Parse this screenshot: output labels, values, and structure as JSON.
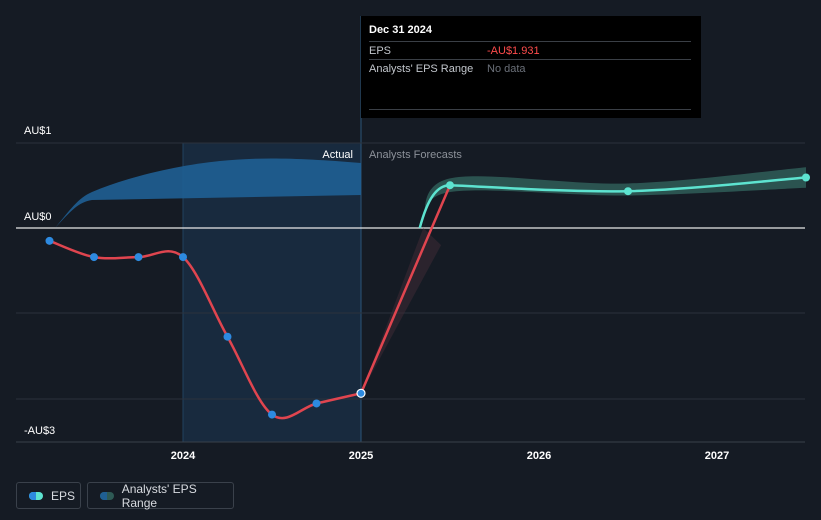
{
  "tooltip": {
    "date": "Dec 31 2024",
    "rows": [
      {
        "label": "EPS",
        "value": "-AU$1.931"
      },
      {
        "label": "Analysts' EPS Range",
        "value": "No data"
      }
    ]
  },
  "legend": {
    "eps_label": "EPS",
    "range_label": "Analysts' EPS Range"
  },
  "colors": {
    "background": "#151b24",
    "actual_line": "#e0454f",
    "forecast_line": "#5de3d0",
    "forecast_band": "#2e5a55",
    "actual_area": "#1f5f93",
    "point": "#2d8ae0"
  },
  "chart_data": {
    "type": "line",
    "title": "",
    "xlabel": "",
    "ylabel": "",
    "y_ticks": [
      {
        "value": 1,
        "label": "AU$1"
      },
      {
        "value": 0,
        "label": "AU$0"
      },
      {
        "value": -2.5,
        "label": "-AU$3"
      }
    ],
    "x_ticks": [
      "2024",
      "2025",
      "2026",
      "2027"
    ],
    "x_range": [
      2023.08,
      2027.5
    ],
    "y_range": [
      -2.5,
      1
    ],
    "grid": true,
    "divider_labels": {
      "actual": "Actual",
      "forecast": "Analysts Forecasts"
    },
    "series": [
      {
        "name": "EPS",
        "kind": "actual",
        "points": [
          {
            "x": 2023.25,
            "y": -0.15
          },
          {
            "x": 2023.5,
            "y": -0.34
          },
          {
            "x": 2023.75,
            "y": -0.34
          },
          {
            "x": 2024.0,
            "y": -0.34
          },
          {
            "x": 2024.25,
            "y": -1.27
          },
          {
            "x": 2024.5,
            "y": -2.18
          },
          {
            "x": 2024.75,
            "y": -2.05
          },
          {
            "x": 2025.0,
            "y": -1.931
          }
        ]
      },
      {
        "name": "EPS",
        "kind": "forecast",
        "points": [
          {
            "x": 2025.0,
            "y": -1.931
          },
          {
            "x": 2025.5,
            "y": 0.5
          },
          {
            "x": 2026.5,
            "y": 0.43
          },
          {
            "x": 2027.5,
            "y": 0.59
          }
        ],
        "range_high": [
          0.58,
          0.52,
          0.71
        ],
        "range_low": [
          0.42,
          0.38,
          0.47
        ]
      }
    ]
  }
}
